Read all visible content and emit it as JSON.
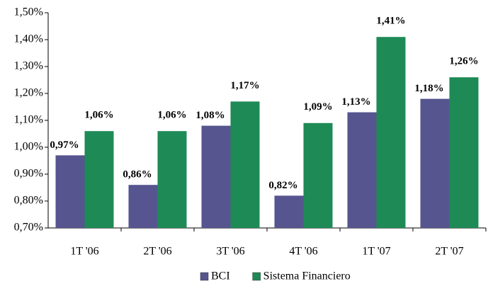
{
  "chart_data": {
    "type": "bar",
    "categories": [
      "1T '06",
      "2T '06",
      "3T '06",
      "4T '06",
      "1T '07",
      "2T '07"
    ],
    "series": [
      {
        "name": "BCI",
        "color": "#56558f",
        "label_color": "#6a68a8",
        "values": [
          0.97,
          0.86,
          1.08,
          0.82,
          1.13,
          1.18
        ],
        "value_labels": [
          "0,97%",
          "0,86%",
          "1,08%",
          "0,82%",
          "1,13%",
          "1,18%"
        ]
      },
      {
        "name": "Sistema Financiero",
        "color": "#1e8a56",
        "label_color": "#2e9a5e",
        "values": [
          1.06,
          1.06,
          1.17,
          1.09,
          1.41,
          1.26
        ],
        "value_labels": [
          "1,06%",
          "1,06%",
          "1,17%",
          "1,09%",
          "1,41%",
          "1,26%"
        ]
      }
    ],
    "ylim": [
      0.7,
      1.5
    ],
    "yticks": [
      {
        "value": 0.7,
        "label": "0,70%"
      },
      {
        "value": 0.8,
        "label": "0,80%"
      },
      {
        "value": 0.9,
        "label": "0,90%"
      },
      {
        "value": 1.0,
        "label": "1,00%"
      },
      {
        "value": 1.1,
        "label": "1,10%"
      },
      {
        "value": 1.2,
        "label": "1,20%"
      },
      {
        "value": 1.3,
        "label": "1,30%"
      },
      {
        "value": 1.4,
        "label": "1,40%"
      },
      {
        "value": 1.5,
        "label": "1,50%"
      }
    ],
    "legend": "bottom"
  }
}
